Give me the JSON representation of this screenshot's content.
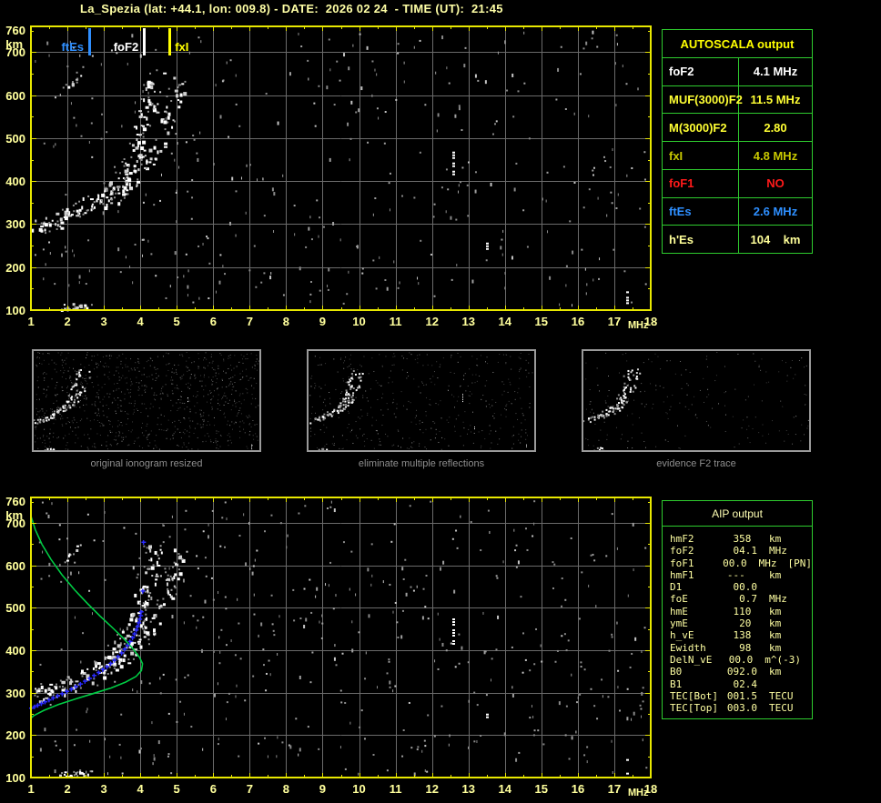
{
  "title": "La_Spezia (lat: +44.1, lon: 009.8) - DATE:  2026 02 24  - TIME (UT):  21:45",
  "autoscala_table": {
    "header": "AUTOSCALA output",
    "rows": [
      {
        "label": "foF2",
        "value": "4.1 MHz",
        "color": "#ffffff"
      },
      {
        "label": "MUF(3000)F2",
        "value": "11.5 MHz",
        "color": "#ffff33"
      },
      {
        "label": "M(3000)F2",
        "value": "2.80",
        "color": "#ffff33"
      },
      {
        "label": "fxI",
        "value": "4.8 MHz",
        "color": "#c8c800"
      },
      {
        "label": "foF1",
        "value": "NO",
        "color": "#ff1a1a"
      },
      {
        "label": "ftEs",
        "value": "2.6 MHz",
        "color": "#2e8fff"
      },
      {
        "label": "h'Es",
        "value": "104    km",
        "color": "#ffff99"
      }
    ]
  },
  "aip_table": {
    "header": "AIP output",
    "rows": [
      {
        "label": "hmF2",
        "value": "358 ",
        "unit": "km",
        "extra": ""
      },
      {
        "label": "foF2",
        "value": "04.1",
        "unit": "MHz",
        "extra": ""
      },
      {
        "label": "foF1",
        "value": "00.0",
        "unit": "MHz",
        "extra": "[PN]"
      },
      {
        "label": "hmF1",
        "value": "---  ",
        "unit": "km",
        "extra": ""
      },
      {
        "label": "D1",
        "value": "00.0",
        "unit": "",
        "extra": ""
      },
      {
        "label": "foE",
        "value": "0.7",
        "unit": "MHz",
        "extra": ""
      },
      {
        "label": "hmE",
        "value": "110 ",
        "unit": "km",
        "extra": ""
      },
      {
        "label": "ymE",
        "value": "20 ",
        "unit": "km",
        "extra": ""
      },
      {
        "label": "h_vE",
        "value": "138 ",
        "unit": "km",
        "extra": ""
      },
      {
        "label": "Ewidth",
        "value": "98 ",
        "unit": "km",
        "extra": ""
      },
      {
        "label": "DelN_vE",
        "value": "00.0",
        "unit": "m^(-3)",
        "extra": ""
      },
      {
        "label": "B0",
        "value": "092.0",
        "unit": "km",
        "extra": ""
      },
      {
        "label": "B1",
        "value": "02.4",
        "unit": "",
        "extra": ""
      },
      {
        "label": "TEC[Bot]",
        "value": "001.5",
        "unit": "TECU",
        "extra": ""
      },
      {
        "label": "TEC[Top]",
        "value": "003.0",
        "unit": "TECU",
        "extra": ""
      }
    ]
  },
  "chart_data": {
    "colors": {
      "grid": "#6b6b6b",
      "border": "#e8e800",
      "tick_text": "#ffff9c",
      "profile": "#00cc44",
      "restored": "#2a2aff",
      "mini_border": "#9a9a9a",
      "caption_text": "#8e8e8e",
      "table_border": "#2ecc2e"
    },
    "shared_traces": {
      "o_trace": [
        [
          1.05,
          295
        ],
        [
          1.3,
          301
        ],
        [
          1.6,
          308
        ],
        [
          1.9,
          317
        ],
        [
          2.2,
          329
        ],
        [
          2.5,
          343
        ],
        [
          2.8,
          358
        ],
        [
          3.1,
          376
        ],
        [
          3.35,
          396
        ],
        [
          3.55,
          416
        ],
        [
          3.7,
          436
        ],
        [
          3.85,
          462
        ],
        [
          3.95,
          490
        ],
        [
          4.05,
          520
        ],
        [
          4.15,
          553
        ],
        [
          4.25,
          588
        ],
        [
          4.33,
          616
        ],
        [
          4.42,
          642
        ]
      ],
      "x_trace": [
        [
          2.9,
          350
        ],
        [
          3.2,
          366
        ],
        [
          3.5,
          383
        ],
        [
          3.8,
          403
        ],
        [
          4.05,
          426
        ],
        [
          4.25,
          452
        ],
        [
          4.45,
          482
        ],
        [
          4.6,
          512
        ],
        [
          4.75,
          546
        ],
        [
          4.9,
          582
        ],
        [
          5.0,
          612
        ],
        [
          5.08,
          632
        ]
      ],
      "es_trace": [
        [
          1.85,
          108
        ],
        [
          2.1,
          110
        ],
        [
          2.35,
          112
        ],
        [
          2.55,
          113
        ]
      ],
      "streak": [
        [
          1.95,
          616
        ],
        [
          2.1,
          632
        ],
        [
          2.3,
          650
        ]
      ],
      "strips": [
        {
          "f": 12.58,
          "h_range": [
            405,
            475
          ]
        },
        {
          "f": 13.5,
          "h_range": [
            243,
            257
          ]
        },
        {
          "f": 17.35,
          "h_range": [
            103,
            150
          ]
        }
      ]
    },
    "top_ionogram": {
      "type": "scatter",
      "xlabel": "MHz",
      "ylabel": "km",
      "xlim": [
        1,
        18
      ],
      "ylim": [
        100,
        760
      ],
      "xticks": [
        1,
        2,
        3,
        4,
        5,
        6,
        7,
        8,
        9,
        10,
        11,
        12,
        13,
        14,
        15,
        16,
        17,
        18
      ],
      "yticks": [
        100,
        200,
        300,
        400,
        500,
        600,
        700,
        760
      ],
      "grid": true,
      "legend": [
        {
          "label": "ftEs",
          "freq": 2.6,
          "color": "#2f8fff",
          "side": "left"
        },
        {
          "label": "foF2",
          "freq": 4.1,
          "color": "#ffffff",
          "side": "left"
        },
        {
          "label": "fxI",
          "freq": 4.8,
          "color": "#ffff00",
          "side": "right"
        }
      ],
      "noise_count": 390,
      "seed": 17
    },
    "bottom_ionogram": {
      "type": "scatter",
      "xlabel": "MHz",
      "ylabel": "km",
      "xlim": [
        1,
        18
      ],
      "ylim": [
        100,
        760
      ],
      "xticks": [
        1,
        2,
        3,
        4,
        5,
        6,
        7,
        8,
        9,
        10,
        11,
        12,
        13,
        14,
        15,
        16,
        17,
        18
      ],
      "yticks": [
        100,
        200,
        300,
        400,
        500,
        600,
        700,
        760
      ],
      "grid": true,
      "noise_count": 460,
      "seed": 29,
      "profile": [
        [
          1.0,
          716
        ],
        [
          1.12,
          684
        ],
        [
          1.3,
          650
        ],
        [
          1.55,
          614
        ],
        [
          1.85,
          578
        ],
        [
          2.2,
          542
        ],
        [
          2.55,
          510
        ],
        [
          2.9,
          480
        ],
        [
          3.25,
          452
        ],
        [
          3.55,
          427
        ],
        [
          3.8,
          403
        ],
        [
          3.98,
          383
        ],
        [
          4.06,
          368
        ],
        [
          4.03,
          352
        ],
        [
          3.88,
          338
        ],
        [
          3.6,
          325
        ],
        [
          3.2,
          311
        ],
        [
          2.75,
          299
        ],
        [
          2.25,
          286
        ],
        [
          1.75,
          272
        ],
        [
          1.35,
          258
        ],
        [
          1.08,
          246
        ],
        [
          1.0,
          240
        ]
      ],
      "restored_trace": [
        [
          1.0,
          264
        ],
        [
          1.18,
          271
        ],
        [
          1.38,
          279
        ],
        [
          1.6,
          288
        ],
        [
          1.85,
          298
        ],
        [
          2.1,
          309
        ],
        [
          2.35,
          321
        ],
        [
          2.6,
          334
        ],
        [
          2.85,
          348
        ],
        [
          3.08,
          362
        ],
        [
          3.28,
          377
        ],
        [
          3.48,
          394
        ],
        [
          3.64,
          412
        ],
        [
          3.78,
          430
        ],
        [
          3.88,
          448
        ],
        [
          3.95,
          465
        ],
        [
          4.0,
          482
        ],
        [
          4.03,
          500
        ]
      ],
      "restored_extra": [
        [
          4.06,
          540
        ],
        [
          4.08,
          655
        ]
      ]
    },
    "mini_panels": [
      {
        "caption": "original ionogram resized",
        "noise_count": 950,
        "seed": 41,
        "show_strips": true
      },
      {
        "caption": "eliminate multiple reflections",
        "noise_count": 430,
        "seed": 53,
        "show_strips": true
      },
      {
        "caption": "evidence F2 trace",
        "noise_count": 200,
        "seed": 67,
        "show_strips": false
      }
    ]
  }
}
